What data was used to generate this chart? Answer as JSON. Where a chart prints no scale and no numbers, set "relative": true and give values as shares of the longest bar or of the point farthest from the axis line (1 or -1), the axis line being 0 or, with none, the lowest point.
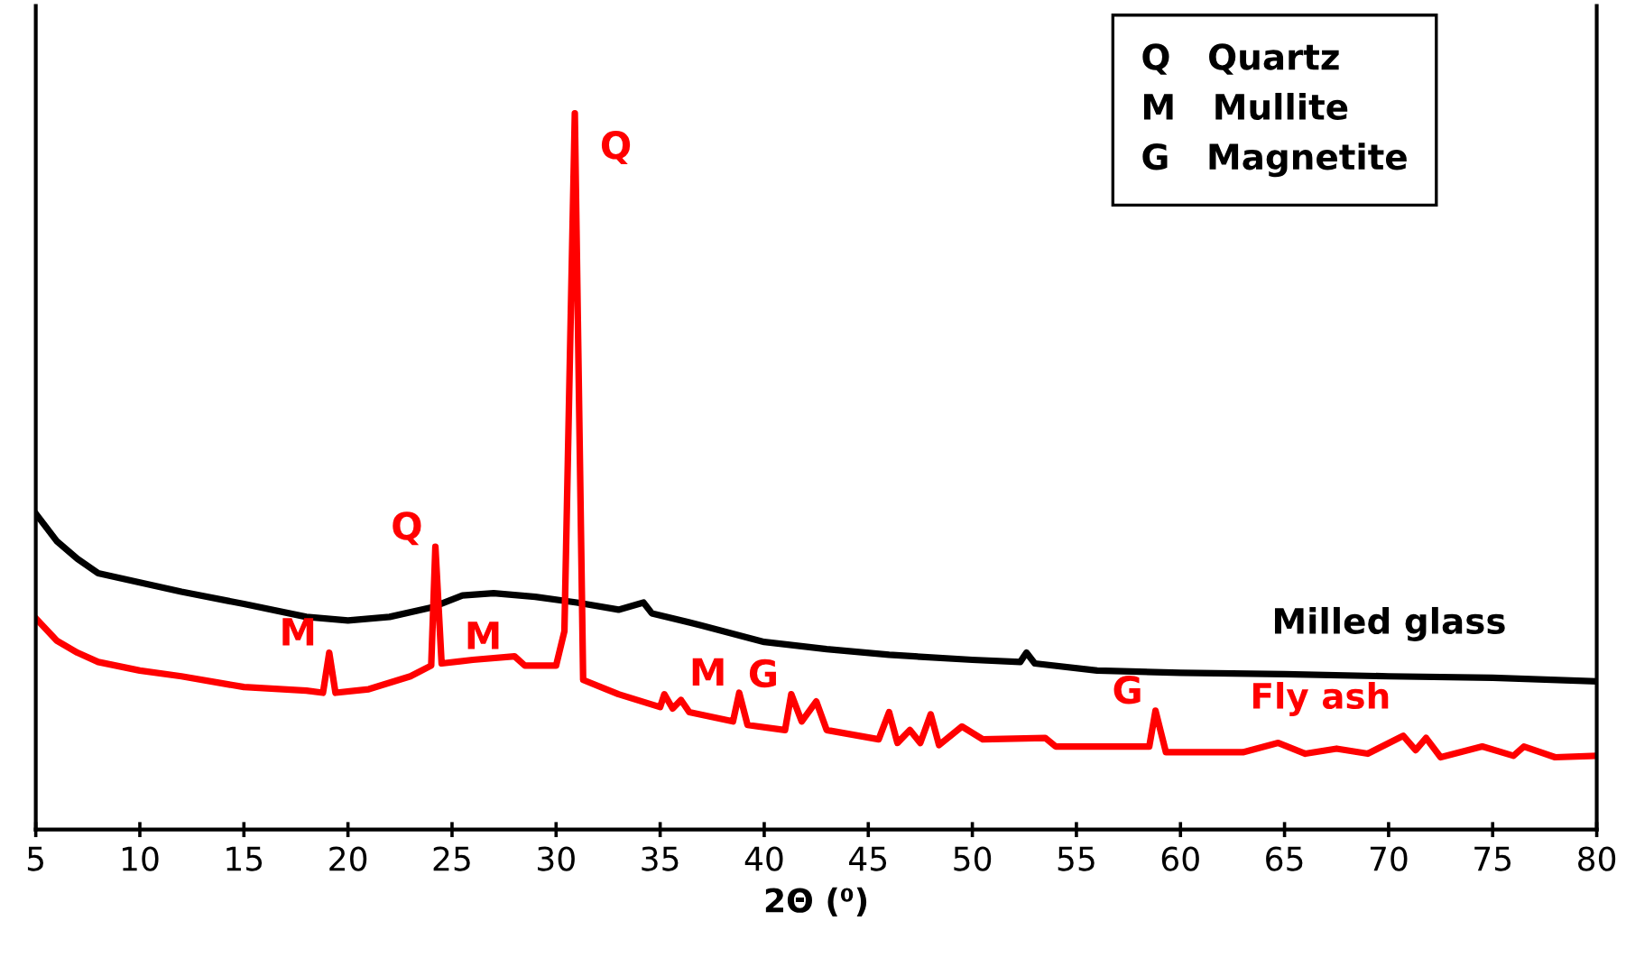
{
  "chart_data": {
    "type": "line",
    "relative": true,
    "xlabel": "2Θ (⁰)",
    "xlim": [
      5,
      80
    ],
    "xticks": [
      5,
      10,
      15,
      20,
      25,
      30,
      35,
      40,
      45,
      50,
      55,
      60,
      65,
      70,
      75,
      80
    ],
    "grid": false,
    "legend": false,
    "marker": "none",
    "line_style": "solid",
    "series": [
      {
        "name": "Milled glass",
        "color": "#000000",
        "x": [
          5,
          6,
          7,
          8,
          10,
          12,
          15,
          18,
          20,
          22,
          24,
          25.5,
          27,
          29,
          31,
          33,
          34.2,
          34.6,
          37,
          40,
          43,
          46,
          50,
          52.3,
          52.6,
          53,
          56,
          60,
          65,
          70,
          75,
          80
        ],
        "values": [
          0.441,
          0.403,
          0.378,
          0.358,
          0.345,
          0.332,
          0.315,
          0.297,
          0.292,
          0.297,
          0.31,
          0.327,
          0.33,
          0.325,
          0.317,
          0.307,
          0.317,
          0.302,
          0.285,
          0.262,
          0.252,
          0.244,
          0.237,
          0.234,
          0.247,
          0.232,
          0.222,
          0.219,
          0.217,
          0.214,
          0.212,
          0.207
        ]
      },
      {
        "name": "Fly ash",
        "color": "#ff0000",
        "x": [
          5,
          6,
          7,
          8,
          10,
          12,
          15,
          18,
          18.8,
          19.1,
          19.4,
          21,
          23,
          24.0,
          24.2,
          24.5,
          26,
          28,
          28.5,
          30,
          30.4,
          30.9,
          31.3,
          33,
          35,
          35.2,
          35.6,
          36,
          36.4,
          38.5,
          38.8,
          39.2,
          41,
          41.3,
          41.8,
          42.5,
          43,
          45.5,
          46,
          46.4,
          47,
          47.5,
          48,
          48.4,
          49.5,
          50.5,
          53.5,
          54,
          58.5,
          58.8,
          59.3,
          63,
          64.7,
          66,
          67.5,
          69,
          70.7,
          71.3,
          71.8,
          72.5,
          74.5,
          76,
          76.5,
          78,
          80
        ],
        "values": [
          0.295,
          0.264,
          0.247,
          0.234,
          0.222,
          0.214,
          0.199,
          0.194,
          0.191,
          0.247,
          0.191,
          0.196,
          0.214,
          0.229,
          0.395,
          0.232,
          0.237,
          0.242,
          0.229,
          0.229,
          0.277,
          1.0,
          0.209,
          0.189,
          0.171,
          0.189,
          0.169,
          0.181,
          0.164,
          0.151,
          0.191,
          0.146,
          0.139,
          0.189,
          0.151,
          0.179,
          0.139,
          0.126,
          0.164,
          0.121,
          0.139,
          0.121,
          0.161,
          0.118,
          0.144,
          0.126,
          0.128,
          0.116,
          0.116,
          0.166,
          0.108,
          0.108,
          0.121,
          0.106,
          0.113,
          0.106,
          0.131,
          0.111,
          0.128,
          0.101,
          0.116,
          0.103,
          0.116,
          0.101,
          0.103
        ]
      }
    ],
    "annotations": [
      {
        "text": "Q",
        "x": 30.9,
        "y": 1.0
      },
      {
        "text": "Q",
        "x": 24.2,
        "y": 0.395
      },
      {
        "text": "M",
        "x": 19.1,
        "y": 0.247
      },
      {
        "text": "M",
        "x": 28,
        "y": 0.242
      },
      {
        "text": "M",
        "x": 38.8,
        "y": 0.191
      },
      {
        "text": "G",
        "x": 41.3,
        "y": 0.189
      },
      {
        "text": "G",
        "x": 58.8,
        "y": 0.166
      },
      "Q   Quartz",
      "M   Mullite",
      "G   Magnetite"
    ]
  }
}
